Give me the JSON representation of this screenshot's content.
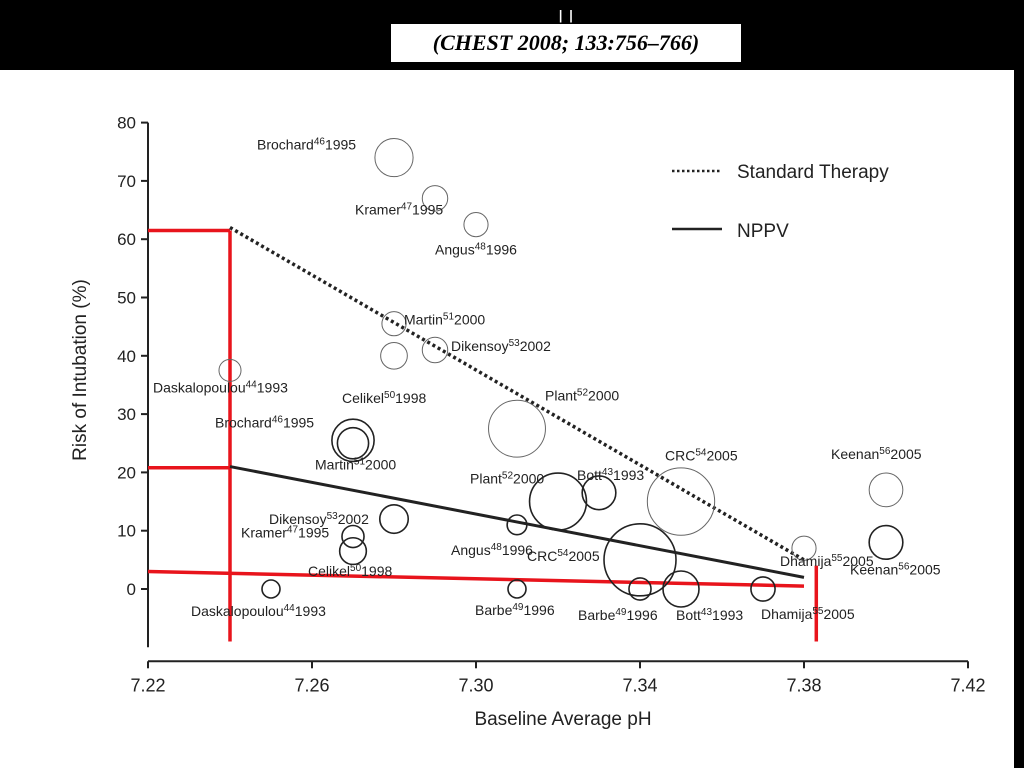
{
  "header": {
    "citation": "(CHEST 2008; 133:756–766)"
  },
  "chart_data": {
    "type": "scatter",
    "title": "",
    "xlabel": "Baseline Average pH",
    "ylabel": "Risk of Intubation (%)",
    "xlim": [
      7.22,
      7.42
    ],
    "ylim": [
      -10,
      80
    ],
    "x_ticks": [
      "7.22",
      "7.26",
      "7.30",
      "7.34",
      "7.38",
      "7.42"
    ],
    "y_ticks": [
      "80",
      "70",
      "60",
      "50",
      "40",
      "30",
      "20",
      "10",
      "0"
    ],
    "grid": false,
    "legend": {
      "placement": "top-right",
      "entries": [
        {
          "name": "Standard Therapy",
          "style": "dotted"
        },
        {
          "name": "NPPV",
          "style": "solid"
        }
      ]
    },
    "series": [
      {
        "name": "Standard Therapy",
        "regression": {
          "x": [
            7.24,
            7.38
          ],
          "y": [
            62,
            5
          ]
        },
        "points": [
          {
            "author": "Brochard",
            "ref": "46",
            "year": "1995",
            "x": 7.28,
            "y": 74,
            "size": 4.5
          },
          {
            "author": "Kramer",
            "ref": "47",
            "year": "1995",
            "x": 7.29,
            "y": 67,
            "size": 2
          },
          {
            "author": "Angus",
            "ref": "48",
            "year": "1996",
            "x": 7.3,
            "y": 62.5,
            "size": 1.8
          },
          {
            "author": "Martin",
            "ref": "51",
            "year": "2000",
            "x": 7.28,
            "y": 45.5,
            "size": 1.8
          },
          {
            "author": "Dikensoy",
            "ref": "53",
            "year": "2002",
            "x": 7.29,
            "y": 41,
            "size": 2
          },
          {
            "author": "Celikel",
            "ref": "50",
            "year": "1998",
            "x": 7.28,
            "y": 40,
            "size": 2.2
          },
          {
            "author": "Daskalopoulou",
            "ref": "44",
            "year": "1993",
            "x": 7.24,
            "y": 37.5,
            "size": 1.5
          },
          {
            "author": "Plant",
            "ref": "52",
            "year": "2000",
            "x": 7.31,
            "y": 27.5,
            "size": 10
          },
          {
            "author": "CRC",
            "ref": "54",
            "year": "2005",
            "x": 7.35,
            "y": 15,
            "size": 14
          },
          {
            "author": "Keenan",
            "ref": "56",
            "year": "2005",
            "x": 7.4,
            "y": 17,
            "size": 3.5
          },
          {
            "author": "Dhamija",
            "ref": "55",
            "year": "2005",
            "x": 7.38,
            "y": 7,
            "size": 1.8
          }
        ]
      },
      {
        "name": "NPPV",
        "regression": {
          "x": [
            7.24,
            7.38
          ],
          "y": [
            21,
            2
          ]
        },
        "points": [
          {
            "author": "Brochard",
            "ref": "46",
            "year": "1995",
            "x": 7.27,
            "y": 25.5,
            "size": 5.5
          },
          {
            "author": "Martin",
            "ref": "51",
            "year": "2000",
            "x": 7.27,
            "y": 25,
            "size": 3
          },
          {
            "author": "Bott",
            "ref": "43",
            "year": "1993",
            "x": 7.33,
            "y": 16.5,
            "size": 3.5
          },
          {
            "author": "Plant",
            "ref": "52",
            "year": "2000",
            "x": 7.32,
            "y": 15,
            "size": 10
          },
          {
            "author": "Dikensoy",
            "ref": "53",
            "year": "2002",
            "x": 7.28,
            "y": 12,
            "size": 2.5
          },
          {
            "author": "Angus",
            "ref": "48",
            "year": "1996",
            "x": 7.31,
            "y": 11,
            "size": 1.2
          },
          {
            "author": "Kramer",
            "ref": "47",
            "year": "1995",
            "x": 7.27,
            "y": 9,
            "size": 1.5
          },
          {
            "author": "Celikel",
            "ref": "50",
            "year": "1998",
            "x": 7.27,
            "y": 6.5,
            "size": 2.2
          },
          {
            "author": "CRC",
            "ref": "54",
            "year": "2005",
            "x": 7.34,
            "y": 5,
            "size": 16
          },
          {
            "author": "Keenan",
            "ref": "56",
            "year": "2005",
            "x": 7.4,
            "y": 8,
            "size": 3.5
          },
          {
            "author": "Daskalopoulou",
            "ref": "44",
            "year": "1993",
            "x": 7.25,
            "y": 0,
            "size": 1
          },
          {
            "author": "Barbe",
            "ref": "49",
            "year": "1996",
            "x": 7.31,
            "y": 0,
            "size": 1
          },
          {
            "author": "Barbe",
            "ref": "49",
            "year": "1996",
            "x": 7.34,
            "y": 0,
            "size": 1.5
          },
          {
            "author": "Bott",
            "ref": "43",
            "year": "1993",
            "x": 7.35,
            "y": 0,
            "size": 4
          },
          {
            "author": "Dhamija",
            "ref": "55",
            "year": "2005",
            "x": 7.37,
            "y": 0,
            "size": 1.8
          }
        ]
      }
    ],
    "annotations": {
      "color": "#e8141c",
      "horizontal": [
        {
          "x": [
            7.22,
            7.24
          ],
          "y": [
            61.5,
            61.5
          ]
        },
        {
          "x": [
            7.22,
            7.24
          ],
          "y": [
            20.8,
            20.8
          ]
        },
        {
          "x": [
            7.22,
            7.38
          ],
          "y": [
            3,
            0.5
          ]
        }
      ],
      "vertical": [
        {
          "x": [
            7.24,
            7.24
          ],
          "y": [
            61.5,
            -9
          ]
        },
        {
          "x": [
            7.383,
            7.383
          ],
          "y": [
            4,
            -9
          ]
        }
      ]
    }
  }
}
